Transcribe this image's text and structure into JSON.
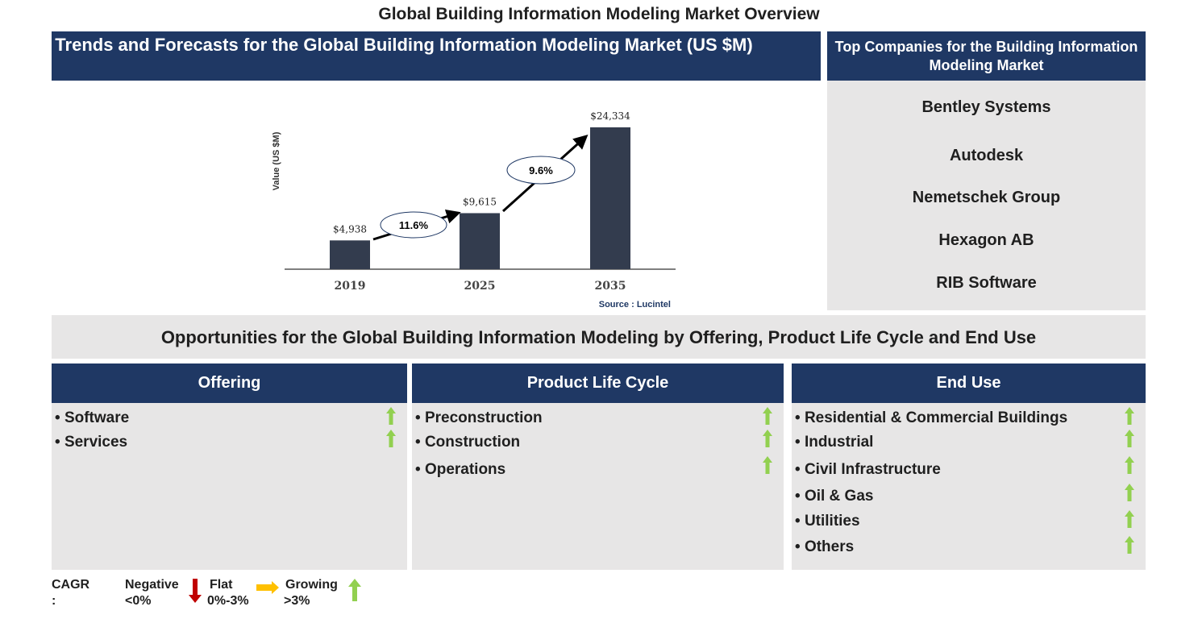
{
  "title": "Global Building Information Modeling Market Overview",
  "trend_header": "Trends and Forecasts for the Global Building Information Modeling Market (US $M)",
  "top_companies": {
    "header": "Top Companies for the Building Information Modeling Market",
    "items": [
      "Bentley Systems",
      "Autodesk",
      "Nemetschek Group",
      "Hexagon AB",
      "RIB Software"
    ]
  },
  "chart_data": {
    "type": "bar",
    "categories": [
      "2019",
      "2025",
      "2035"
    ],
    "values": [
      4938,
      9615,
      24334
    ],
    "value_labels": [
      "$4,938",
      "$9,615",
      "$24,334"
    ],
    "ylabel": "Value (US $M)",
    "xlabel": "",
    "cagr_labels": [
      "11.6%",
      "9.6%"
    ],
    "source": "Source : Lucintel",
    "bar_color": "#333c4e"
  },
  "opportunities": {
    "title": "Opportunities for the Global Building Information Modeling by Offering, Product Life Cycle and End Use",
    "segments": [
      {
        "name": "Offering",
        "items": [
          "Software",
          "Services"
        ]
      },
      {
        "name": "Product Life Cycle",
        "items": [
          "Preconstruction",
          "Construction",
          "Operations"
        ]
      },
      {
        "name": "End Use",
        "items": [
          "Residential & Commercial Buildings",
          "Industrial",
          "Civil Infrastructure",
          "Oil & Gas",
          "Utilities",
          "Others"
        ]
      }
    ]
  },
  "legend": {
    "label": "CAGR :",
    "negative": "Negative",
    "negative_range": "<0%",
    "flat": "Flat",
    "flat_range": "0%-3%",
    "growing": "Growing",
    "growing_range": ">3%",
    "colors": {
      "negative": "#c00000",
      "flat": "#ffc000",
      "growing": "#92d050"
    }
  }
}
